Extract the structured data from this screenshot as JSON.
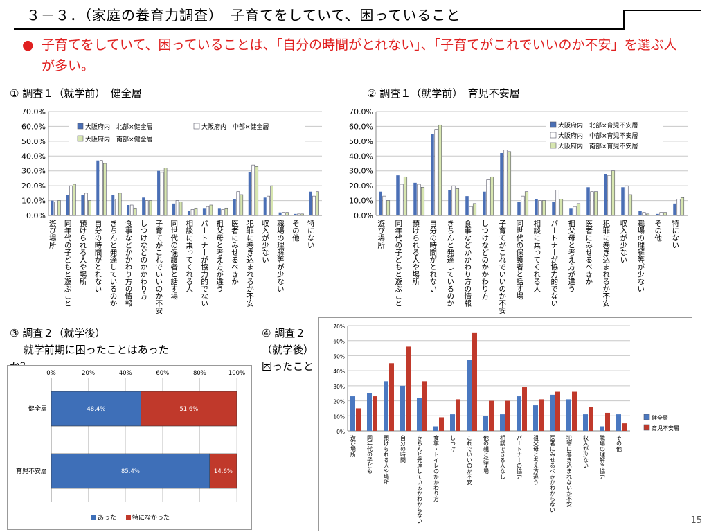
{
  "title": "３－３．（家庭の養育力調査）　子育てをしていて、困っていること",
  "bullet": {
    "dot": "●",
    "text": "子育てをしていて、困っていることは、「自分の時間がとれない」、「子育てがこれでいいのか不安」を選ぶ人が多い。"
  },
  "page_number": "15",
  "chart_data": [
    {
      "type": "bar",
      "heading": "① 調査１（就学前）　健全層",
      "categories": [
        "遊び場所",
        "同年代の子どもと遊ぶこと",
        "預けられる人や場所",
        "自分の時間がとれない",
        "きちんと発達しているのか",
        "食事などかかわり方の情報",
        "しつけなどのかかわり方",
        "子育てがこれでいいのか不安",
        "同世代の保護者と話す場",
        "相談に乗ってくれる人",
        "パートナーが協力的でない",
        "祖父母と考え方が違う",
        "医者にみせるべきか",
        "犯罪に巻き込まれるか不安",
        "収入が少ない",
        "職場の理解等が少ない",
        "その他",
        "特にない"
      ],
      "y_ticks": [
        "0.0%",
        "10.0%",
        "20.0%",
        "30.0%",
        "40.0%",
        "50.0%",
        "60.0%",
        "70.0%"
      ],
      "ylim": [
        0,
        70
      ],
      "series": [
        {
          "name": "大阪府内　北部×健全層",
          "color": "#4a6fb5",
          "values": [
            10,
            14,
            14,
            37,
            14,
            7,
            12,
            30,
            8,
            3,
            5,
            5,
            11,
            29,
            12,
            2,
            1,
            16
          ]
        },
        {
          "name": "大阪府内　中部×健全層",
          "color": "#ffffff",
          "values": [
            9,
            20,
            15,
            37,
            11,
            7,
            10,
            29,
            10,
            4,
            6,
            4,
            16,
            34,
            13,
            2,
            1,
            13
          ]
        },
        {
          "name": "大阪府内　南部×健全層",
          "color": "#d7e6b0",
          "values": [
            10,
            21,
            10,
            35,
            15,
            5,
            10,
            32,
            9,
            5,
            7,
            5,
            14,
            33,
            20,
            2,
            1,
            16
          ]
        }
      ],
      "legend": "top"
    },
    {
      "type": "bar",
      "heading": "② 調査１（就学前）　育児不安層",
      "categories": [
        "遊び場所",
        "同年代の子どもと遊ぶこと",
        "預けられる人や場所",
        "自分の時間がとれない",
        "きちんと発達しているのか",
        "食事などかかわり方の情報",
        "しつけなどのかかわり方",
        "子育てがこれでいいのか不安",
        "同世代の保護者と話す場",
        "相談に乗ってくれる人",
        "パートナーが協力的でない",
        "祖父母と考え方が違う",
        "医者にみせるべきか",
        "犯罪に巻き込まれるか不安",
        "収入が少ない",
        "職場の理解等が少ない",
        "その他",
        "特にない"
      ],
      "y_ticks": [
        "0.0%",
        "10.0%",
        "20.0%",
        "30.0%",
        "40.0%",
        "50.0%",
        "60.0%",
        "70.0%"
      ],
      "ylim": [
        0,
        70
      ],
      "series": [
        {
          "name": "大阪府内　北部×育児不安層",
          "color": "#4a6fb5",
          "values": [
            16,
            27,
            22,
            55,
            17,
            13,
            16,
            42,
            9,
            11,
            9,
            5,
            19,
            28,
            19,
            3,
            1,
            8
          ]
        },
        {
          "name": "大阪府内　中部×育児不安層",
          "color": "#ffffff",
          "values": [
            13,
            21,
            21,
            58,
            20,
            6,
            24,
            44,
            13,
            10,
            17,
            6,
            16,
            27,
            20,
            2,
            2,
            11
          ]
        },
        {
          "name": "大阪府内　南部×育児不安層",
          "color": "#d7e6b0",
          "values": [
            10,
            26,
            19,
            61,
            18,
            8,
            26,
            43,
            16,
            10,
            11,
            8,
            16,
            30,
            14,
            1,
            2,
            12
          ]
        }
      ],
      "legend": "right"
    },
    {
      "type": "bar",
      "orientation": "horizontal-stacked",
      "heading_line1": "③ 調査２（就学後）",
      "heading_line2": "　 就学前期に困ったことはあった",
      "heading_line3": "か？",
      "categories": [
        "健全層",
        "育児不安層"
      ],
      "x_ticks": [
        "0%",
        "20%",
        "40%",
        "60%",
        "80%",
        "100%"
      ],
      "xlim": [
        0,
        100
      ],
      "series": [
        {
          "name": "あった",
          "color": "#3e6fb8",
          "values": [
            48.4,
            85.4
          ],
          "labels": [
            "48.4%",
            "85.4%"
          ]
        },
        {
          "name": "特になかった",
          "color": "#c0392b",
          "values": [
            51.6,
            14.6
          ],
          "labels": [
            "51.6%",
            "14.6%"
          ]
        }
      ],
      "legend": "bottom"
    },
    {
      "type": "bar",
      "heading_line1": "④ 調査２",
      "heading_line2": "（就学後）",
      "heading_line3": "困ったこと",
      "categories": [
        "遊び場所",
        "同年代の子ども",
        "預けられる人や場所",
        "自分の時間",
        "きちんと発達しているかわからない",
        "食事・トイレのかかわり方",
        "しつけ",
        "これでいいのか不安",
        "他の親と話す場",
        "相談できる人なし",
        "パートナーの協力",
        "祖父母と考え方違う",
        "医者にみせるべきかわからない",
        "犯罪に巻き込まれないか不安",
        "収入が少ない",
        "職場の理解や協力",
        "その他"
      ],
      "y_ticks": [
        "0%",
        "10%",
        "20%",
        "30%",
        "40%",
        "50%",
        "60%",
        "70%"
      ],
      "ylim": [
        0,
        70
      ],
      "series": [
        {
          "name": "健全層",
          "color": "#4a78c0",
          "values": [
            23,
            25,
            33,
            30,
            22,
            3,
            11,
            47,
            10,
            11,
            23,
            17,
            24,
            21,
            11,
            3,
            11
          ]
        },
        {
          "name": "育児不安層",
          "color": "#c0392b",
          "values": [
            15,
            23,
            45,
            56,
            33,
            9,
            21,
            65,
            20,
            20,
            29,
            21,
            26,
            26,
            16,
            12,
            5
          ]
        }
      ],
      "legend": "right"
    }
  ]
}
